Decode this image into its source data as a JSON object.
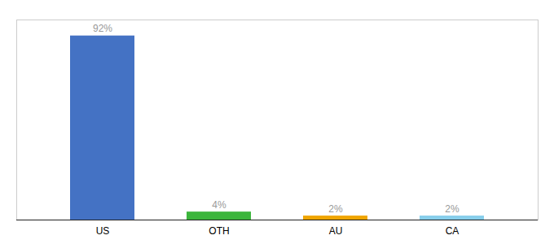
{
  "chart_data": {
    "type": "bar",
    "categories": [
      "US",
      "OTH",
      "AU",
      "CA"
    ],
    "values": [
      92,
      4,
      2,
      2
    ],
    "value_labels": [
      "92%",
      "4%",
      "2%",
      "2%"
    ],
    "data_labels": true,
    "colors": [
      "#4472c4",
      "#3cb53c",
      "#f0a500",
      "#87ceeb"
    ],
    "ylim": [
      0,
      100
    ],
    "tick_labels": "x",
    "grid": false
  }
}
